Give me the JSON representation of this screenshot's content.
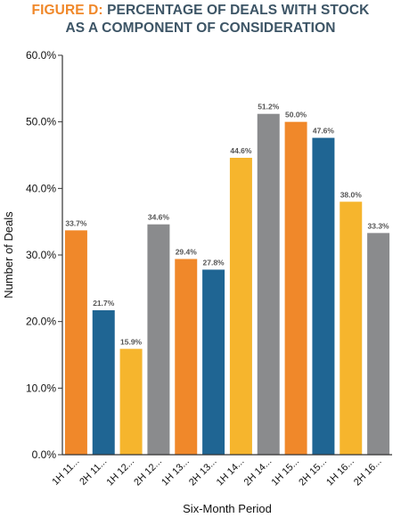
{
  "title": {
    "prefix": "FIGURE D:",
    "line1": "PERCENTAGE OF DEALS WITH STOCK",
    "line2": "AS A COMPONENT OF CONSIDERATION"
  },
  "chart_data": {
    "type": "bar",
    "categories": [
      "1H 11...",
      "2H 11...",
      "1H 12...",
      "2H 12...",
      "1H 13...",
      "2H 13...",
      "1H 14...",
      "2H 14...",
      "1H 15...",
      "2H 15...",
      "1H 16...",
      "2H 16..."
    ],
    "values": [
      33.7,
      21.7,
      15.9,
      34.6,
      29.4,
      27.8,
      44.6,
      51.2,
      50.0,
      47.6,
      38.0,
      33.3
    ],
    "data_labels": [
      "33.7%",
      "21.7%",
      "15.9%",
      "34.6%",
      "29.4%",
      "27.8%",
      "44.6%",
      "51.2%",
      "50.0%",
      "47.6%",
      "38.0%",
      "33.3%"
    ],
    "bar_colors": [
      "#f0882a",
      "#1f6593",
      "#f6b52d",
      "#8a8b8d",
      "#f0882a",
      "#1f6593",
      "#f6b52d",
      "#8a8b8d",
      "#f0882a",
      "#1f6593",
      "#f6b52d",
      "#8a8b8d"
    ],
    "xlabel": "Six-Month Period",
    "ylabel": "Number of Deals",
    "ylim": [
      0,
      60
    ],
    "yticks": [
      "0.0%",
      "10.0%",
      "20.0%",
      "30.0%",
      "40.0%",
      "50.0%",
      "60.0%"
    ],
    "grid": false,
    "legend": "none"
  }
}
